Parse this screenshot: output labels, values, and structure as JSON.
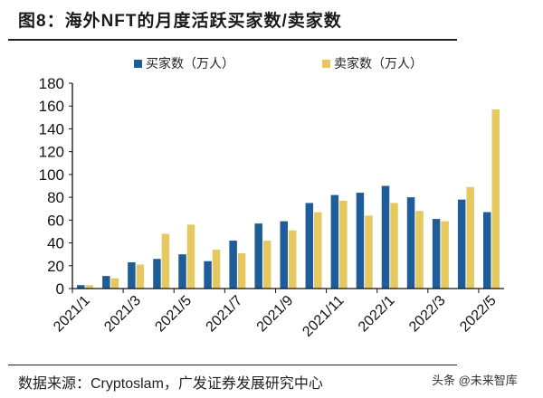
{
  "header": {
    "title": "图8：海外NFT的月度活跃买家数/卖家数"
  },
  "footer": {
    "source": "数据来源：Cryptoslam，广发证券发展研究中心",
    "watermark": "头条 @未来智库"
  },
  "chart_data": {
    "type": "bar",
    "title": "海外NFT的月度活跃买家数/卖家数",
    "xlabel": "",
    "ylabel": "",
    "ylim": [
      0,
      180
    ],
    "yticks": [
      0,
      20,
      40,
      60,
      80,
      100,
      120,
      140,
      160,
      180
    ],
    "grid": false,
    "legend_position": "top",
    "categories": [
      "2021/1",
      "2021/2",
      "2021/3",
      "2021/4",
      "2021/5",
      "2021/6",
      "2021/7",
      "2021/8",
      "2021/9",
      "2021/10",
      "2021/11",
      "2021/12",
      "2022/1",
      "2022/2",
      "2022/3",
      "2022/4",
      "2022/5"
    ],
    "xtick_labels": [
      "2021/1",
      "2021/3",
      "2021/5",
      "2021/7",
      "2021/9",
      "2021/11",
      "2022/1",
      "2022/3",
      "2022/5"
    ],
    "series": [
      {
        "name": "买家数（万人）",
        "color": "#1E5D99",
        "values": [
          3,
          11,
          23,
          26,
          30,
          24,
          42,
          57,
          59,
          75,
          82,
          84,
          90,
          80,
          61,
          78,
          67
        ]
      },
      {
        "name": "卖家数（万人）",
        "color": "#E6C860",
        "values": [
          3,
          9,
          21,
          48,
          56,
          34,
          31,
          42,
          51,
          67,
          77,
          64,
          75,
          68,
          59,
          89,
          157
        ]
      }
    ]
  }
}
